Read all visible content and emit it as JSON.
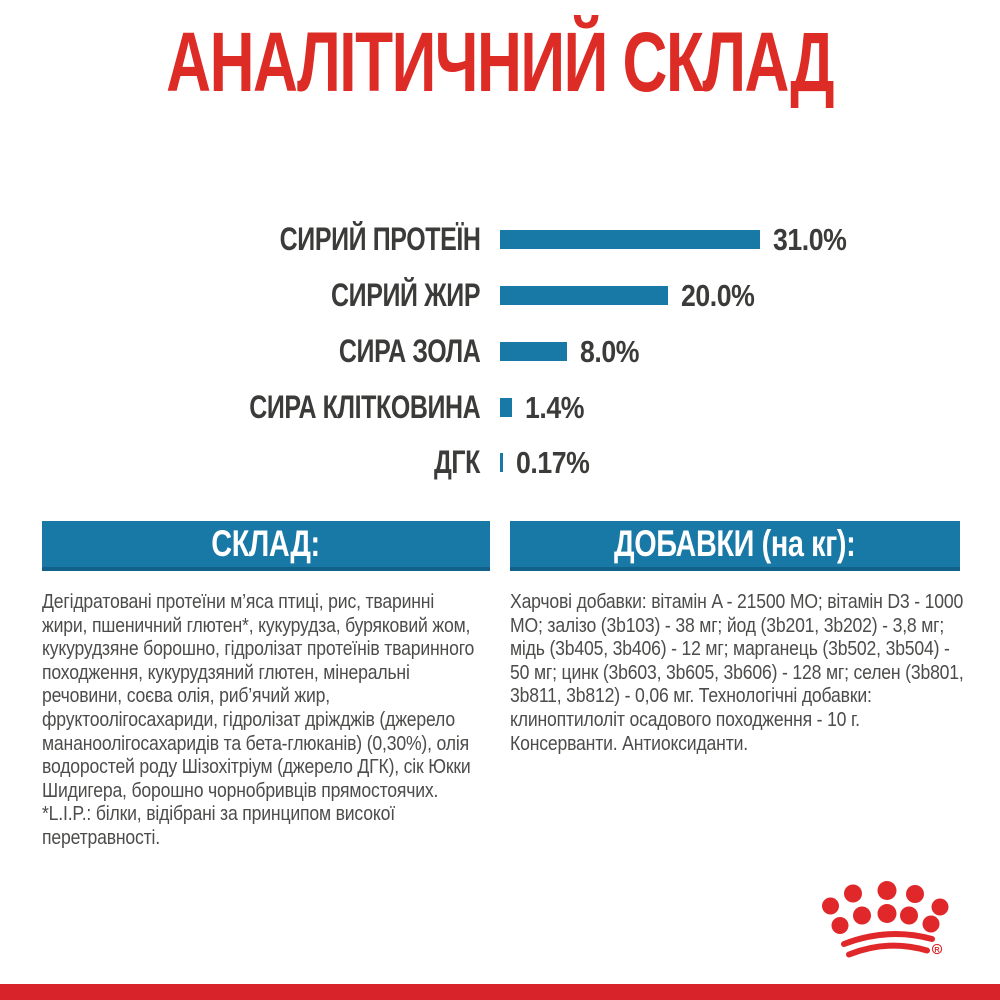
{
  "title": "АНАЛІТИЧНИЙ СКЛАД",
  "chart_data": {
    "type": "bar",
    "orientation": "horizontal",
    "title": "АНАЛІТИЧНИЙ СКЛАД",
    "categories": [
      "СИРИЙ ПРОТЕЇН",
      "СИРИЙ ЖИР",
      "СИРА ЗОЛА",
      "СИРА КЛІТКОВИНА",
      "ДГК"
    ],
    "values": [
      31.0,
      20.0,
      8.0,
      1.4,
      0.17
    ],
    "value_labels": [
      "31.0%",
      "20.0%",
      "8.0%",
      "1.4%",
      "0.17%"
    ],
    "xlim": [
      0,
      31
    ],
    "bar_color": "#1878a6",
    "grid": false,
    "legend": false,
    "value_label_position": "end-of-bar"
  },
  "sections": {
    "composition": {
      "header": "СКЛАД:",
      "body": "Дегідратовані протеїни м’яса птиці, рис, тваринні жири, пшеничний глютен*, кукурудза, буряковий жом, кукурудзяне борошно, гідролізат протеїнів тваринного походження, кукурудзяний глютен, мінеральні речовини, соєва олія, риб’ячий жир, фруктоолігосахариди, гідролізат дріжджів (джерело мананоолігосахаридів та бета-глюканів) (0,30%), олія водоростей роду Шізохітріум (джерело ДГК), сік Юкки Шидигера, борошно чорнобривців прямостоячих.",
      "footnote": "*L.I.P.: білки, відібрані за принципом високої перетравності."
    },
    "additives": {
      "header": "ДОБАВКИ (на кг):",
      "body": "Харчові добавки: вітамін A - 21500 МО; вітамін D3 - 1000 МО; залізо (3b103) - 38 мг; йод (3b201, 3b202) - 3,8 мг; мідь (3b405, 3b406) - 12 мг; марганець (3b502, 3b504) - 50 мг; цинк (3b603, 3b605, 3b606) - 128 мг; селен (3b801, 3b811, 3b812) - 0,06 мг. Технологічні добавки: клиноптилоліт осадового походження - 10 г. Консерванти. Антиоксиданти."
    }
  },
  "logo": {
    "name": "royal-canin-crown",
    "registered_mark": "®",
    "color": "#e0282b"
  },
  "colors": {
    "accent_red": "#dd2b26",
    "accent_blue": "#1878a6",
    "label_text": "#3b3b3a",
    "body_text": "#4c4c4b",
    "footer_bar": "#d8232b"
  }
}
